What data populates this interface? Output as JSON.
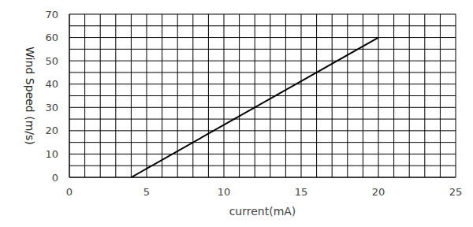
{
  "chart_data": {
    "type": "line",
    "xlabel": "current(mA)",
    "ylabel": "Wind Speed (m/s)",
    "x": [
      4,
      20
    ],
    "values": [
      0,
      60
    ],
    "color": "#000000",
    "xlim": [
      0,
      25
    ],
    "xticks": [
      0,
      5,
      10,
      15,
      20,
      25
    ],
    "ylim": [
      0,
      70
    ],
    "yticks": [
      0,
      10,
      20,
      30,
      40,
      50,
      60,
      70
    ],
    "grid": true
  }
}
